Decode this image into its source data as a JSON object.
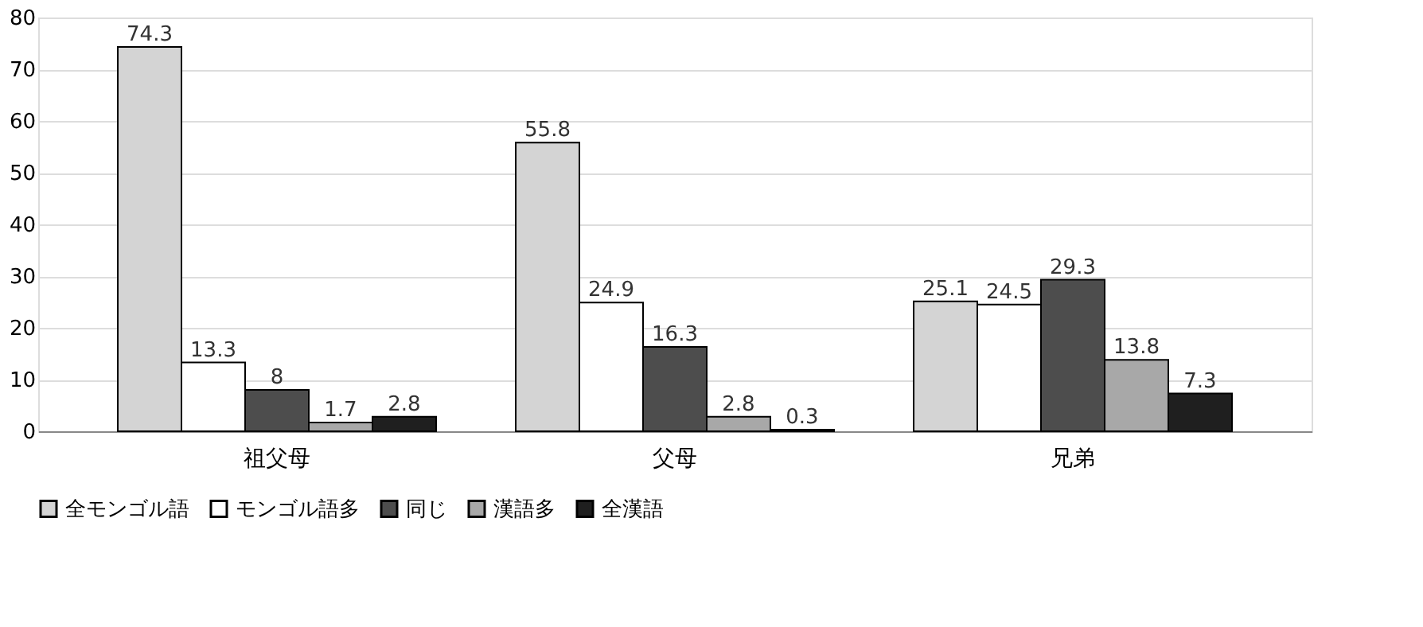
{
  "chart_data": {
    "type": "bar",
    "categories": [
      "祖父母",
      "父母",
      "兄弟"
    ],
    "series": [
      {
        "name": "全モンゴル語",
        "color": "#d4d4d4",
        "values": [
          74.3,
          55.8,
          25.1
        ]
      },
      {
        "name": "モンゴル語多",
        "color": "#ffffff",
        "values": [
          13.3,
          24.9,
          24.5
        ]
      },
      {
        "name": "同じ",
        "color": "#4d4d4d",
        "values": [
          8,
          16.3,
          29.3
        ]
      },
      {
        "name": "漢語多",
        "color": "#a8a8a8",
        "values": [
          1.7,
          2.8,
          13.8
        ]
      },
      {
        "name": "全漢語",
        "color": "#1f1f1f",
        "values": [
          2.8,
          0.3,
          7.3
        ]
      }
    ],
    "ylim": [
      0,
      80
    ],
    "yticks": [
      0,
      10,
      20,
      30,
      40,
      50,
      60,
      70,
      80
    ],
    "grid": "y",
    "legend": "bottom",
    "data_labels": true
  }
}
